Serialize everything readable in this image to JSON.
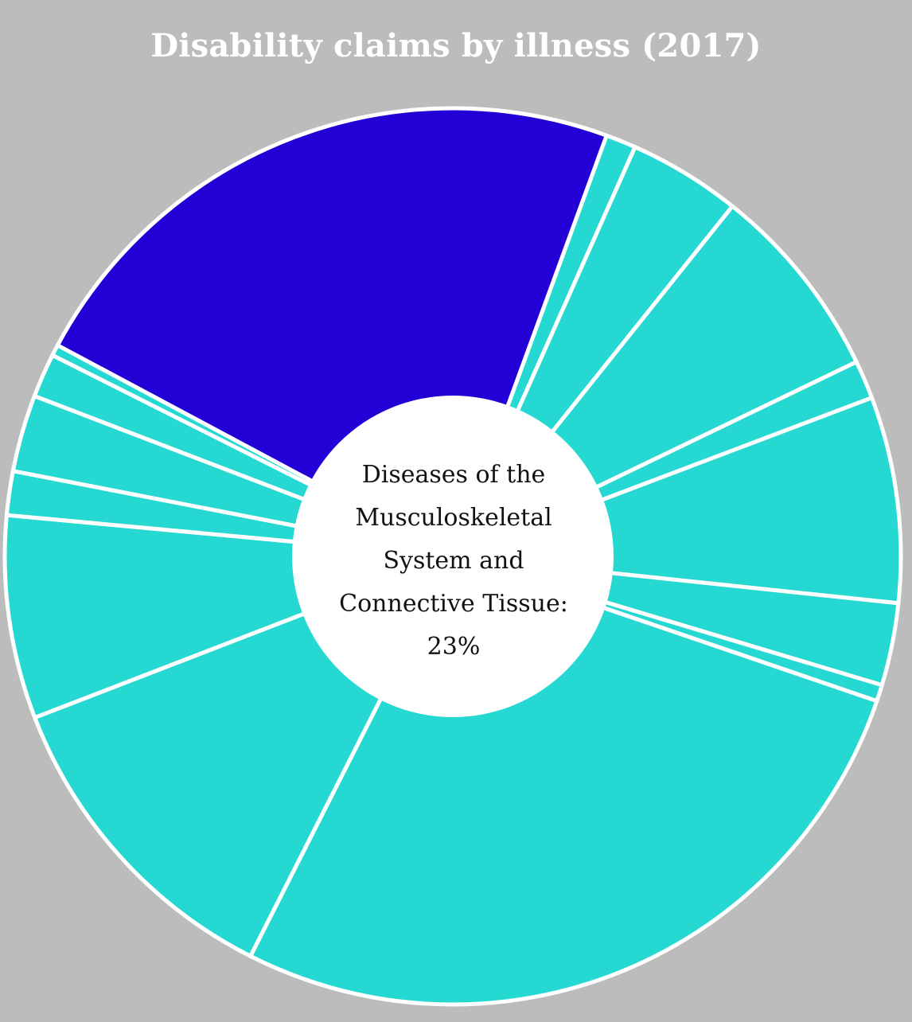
{
  "chart_data": {
    "type": "pie",
    "title": "Disability claims by illness (2017)",
    "colors": {
      "background": "#bcbcbc",
      "highlight": "#2400d6",
      "normal": "#25d9d2",
      "border": "#ffffff",
      "hole": "#ffffff"
    },
    "highlight_index": 0,
    "slices": [
      {
        "pct": 23.0
      },
      {
        "pct": 1.1
      },
      {
        "pct": 4.1
      },
      {
        "pct": 7.2
      },
      {
        "pct": 1.4
      },
      {
        "pct": 7.5
      },
      {
        "pct": 3.0
      },
      {
        "pct": 0.6
      },
      {
        "pct": 27.5
      },
      {
        "pct": 11.8
      },
      {
        "pct": 7.4
      },
      {
        "pct": 1.6
      },
      {
        "pct": 2.8
      },
      {
        "pct": 1.6
      },
      {
        "pct": 0.4
      }
    ],
    "center_label": {
      "lines": [
        "Diseases of the",
        "Musculoskeletal",
        "System and",
        "Connective Tissue:",
        "23%"
      ]
    }
  }
}
